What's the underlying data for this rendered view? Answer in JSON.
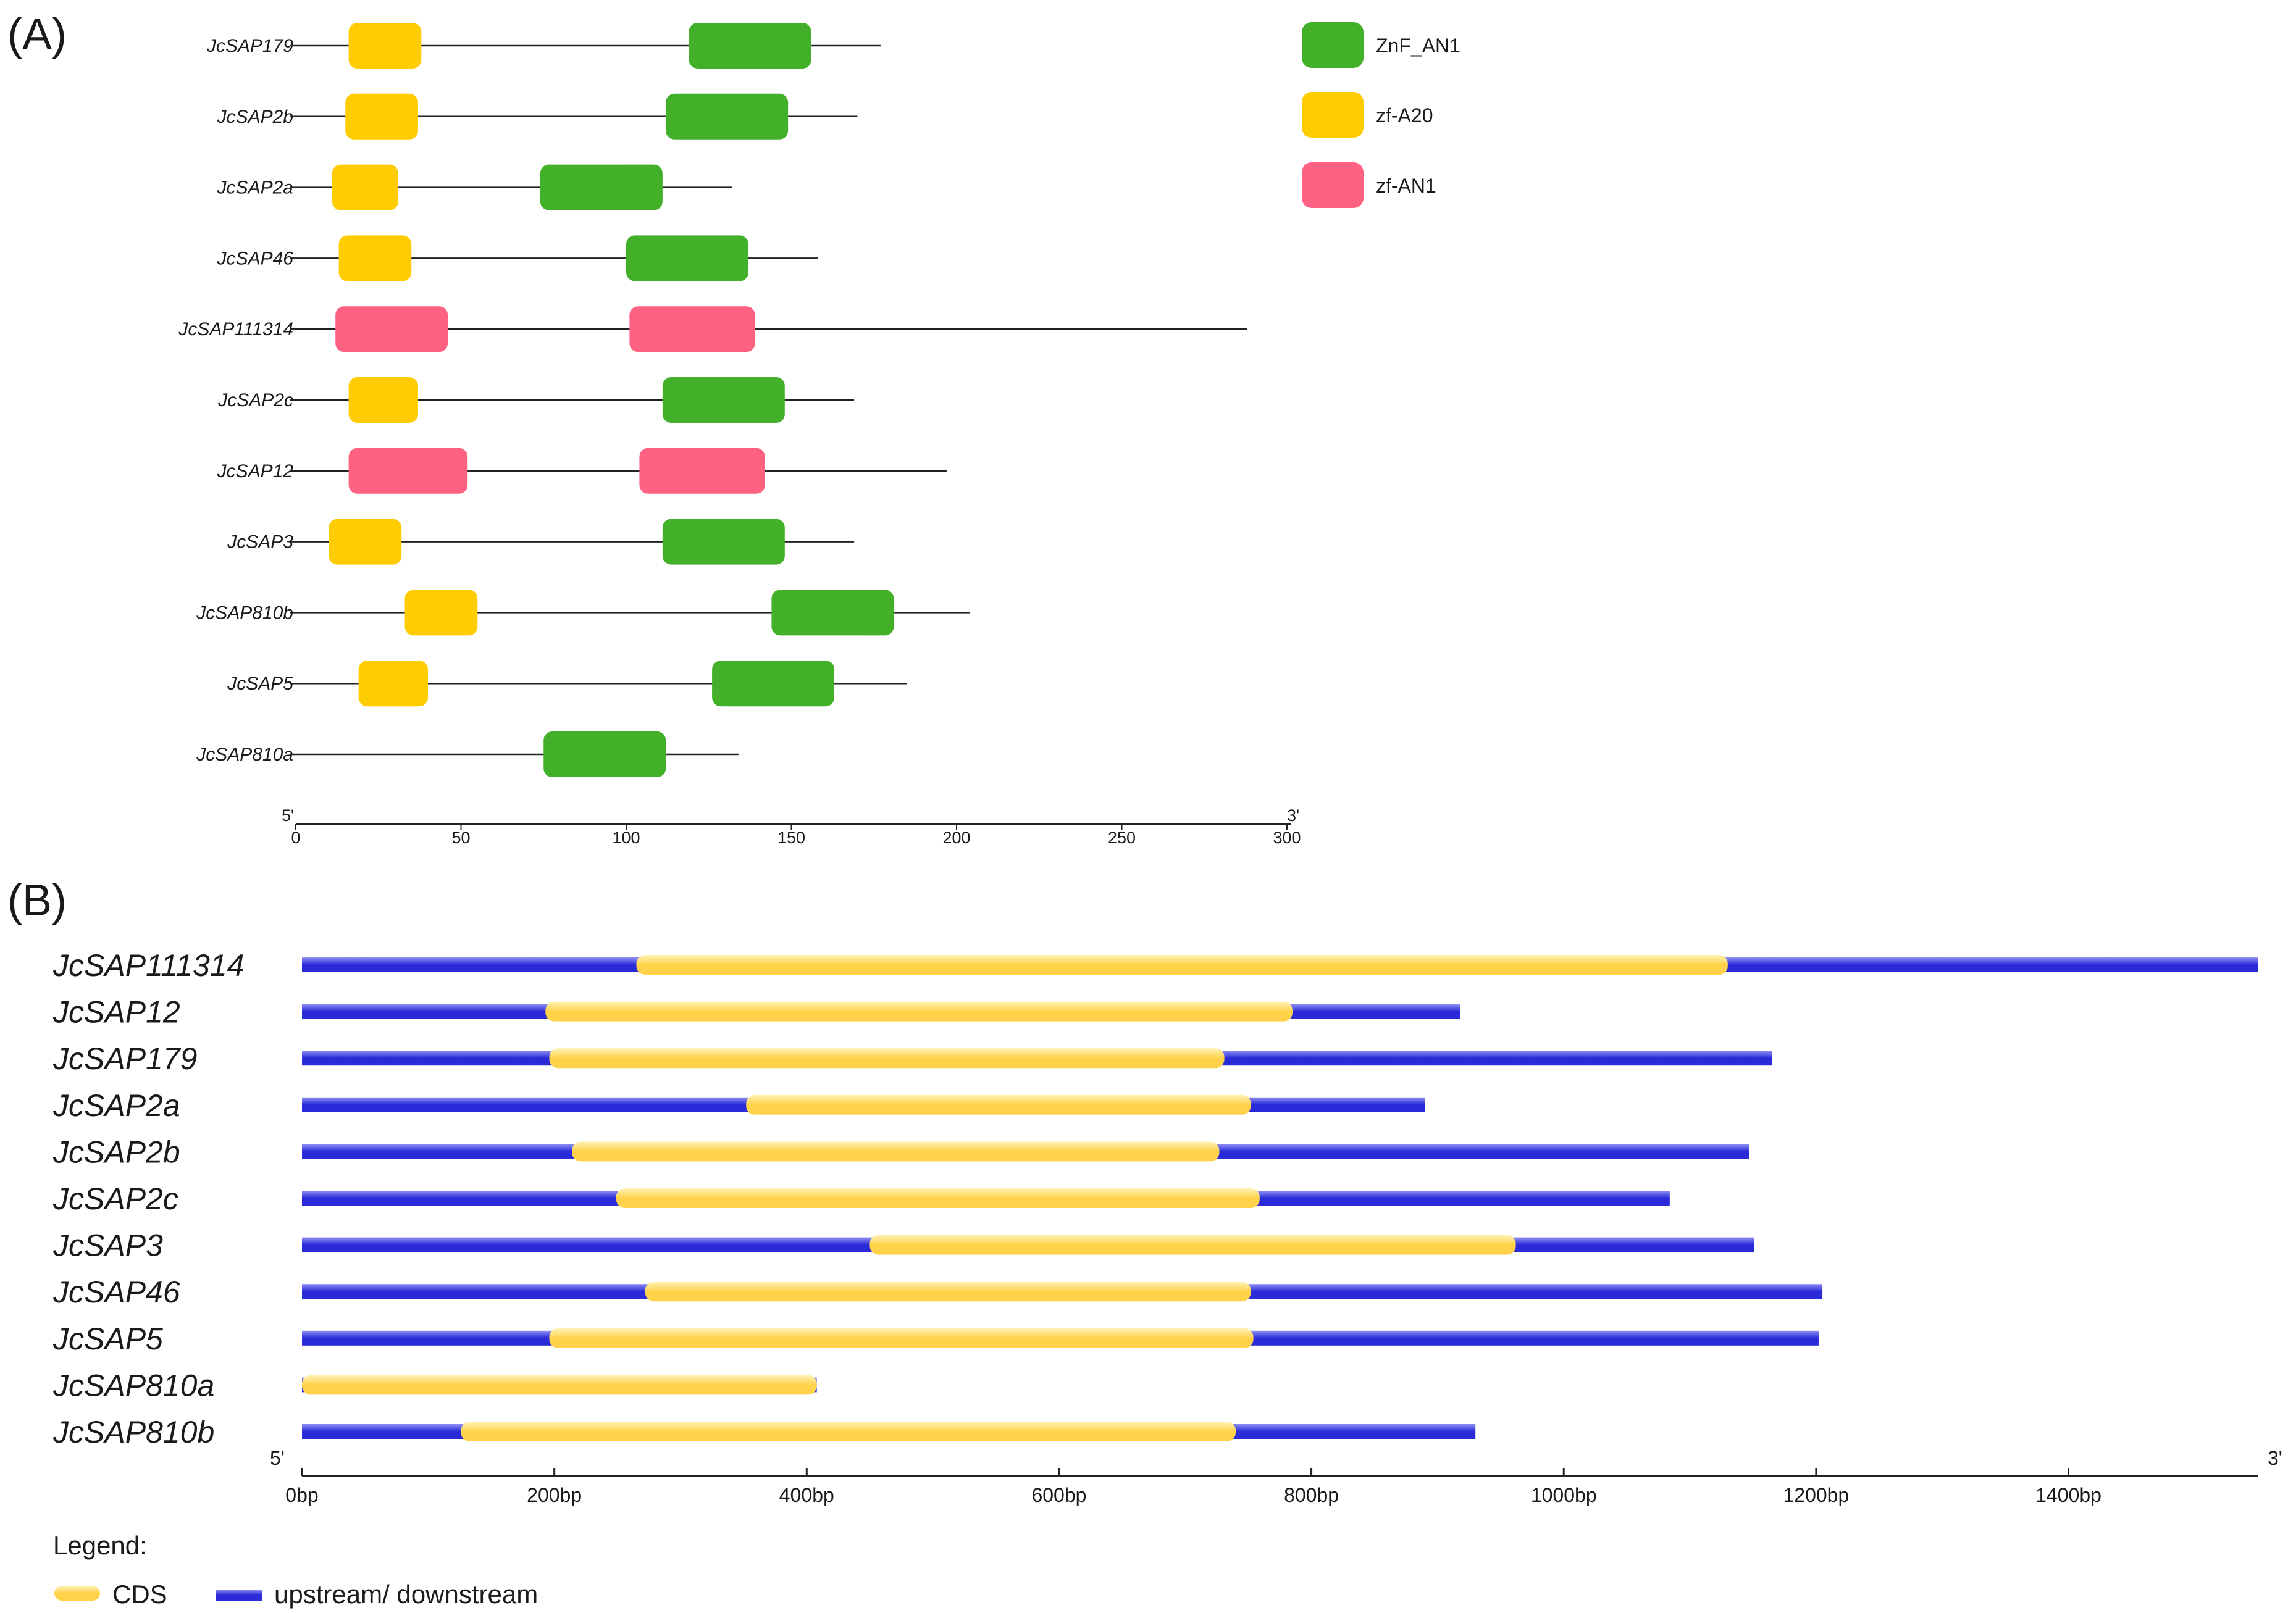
{
  "chart_data": [
    {
      "type": "protein-domain-diagram",
      "panel_label": "(A)",
      "axis": {
        "min": 0,
        "max": 300,
        "ticks": [
          0,
          50,
          100,
          150,
          200,
          250,
          300
        ],
        "start_label": "5'",
        "end_label": "3'"
      },
      "domain_types": [
        {
          "key": "ZnF_AN1",
          "label": "ZnF_AN1",
          "color": "#43b02a"
        },
        {
          "key": "zf-A20",
          "label": "zf-A20",
          "color": "#ffcc00"
        },
        {
          "key": "zf-AN1",
          "label": "zf-AN1",
          "color": "#ff6183"
        }
      ],
      "proteins": [
        {
          "name": "JcSAP179",
          "length": 177,
          "domains": [
            {
              "type": "zf-A20",
              "start": 16,
              "end": 38
            },
            {
              "type": "ZnF_AN1",
              "start": 119,
              "end": 156
            }
          ]
        },
        {
          "name": "JcSAP2b",
          "length": 170,
          "domains": [
            {
              "type": "zf-A20",
              "start": 15,
              "end": 37
            },
            {
              "type": "ZnF_AN1",
              "start": 112,
              "end": 149
            }
          ]
        },
        {
          "name": "JcSAP2a",
          "length": 132,
          "domains": [
            {
              "type": "zf-A20",
              "start": 11,
              "end": 31
            },
            {
              "type": "ZnF_AN1",
              "start": 74,
              "end": 111
            }
          ]
        },
        {
          "name": "JcSAP46",
          "length": 158,
          "domains": [
            {
              "type": "zf-A20",
              "start": 13,
              "end": 35
            },
            {
              "type": "ZnF_AN1",
              "start": 100,
              "end": 137
            }
          ]
        },
        {
          "name": "JcSAP111314",
          "length": 288,
          "domains": [
            {
              "type": "zf-AN1",
              "start": 12,
              "end": 46
            },
            {
              "type": "zf-AN1",
              "start": 101,
              "end": 139
            }
          ]
        },
        {
          "name": "JcSAP2c",
          "length": 169,
          "domains": [
            {
              "type": "zf-A20",
              "start": 16,
              "end": 37
            },
            {
              "type": "ZnF_AN1",
              "start": 111,
              "end": 148
            }
          ]
        },
        {
          "name": "JcSAP12",
          "length": 197,
          "domains": [
            {
              "type": "zf-AN1",
              "start": 16,
              "end": 52
            },
            {
              "type": "zf-AN1",
              "start": 104,
              "end": 142
            }
          ]
        },
        {
          "name": "JcSAP3",
          "length": 169,
          "domains": [
            {
              "type": "zf-A20",
              "start": 10,
              "end": 32
            },
            {
              "type": "ZnF_AN1",
              "start": 111,
              "end": 148
            }
          ]
        },
        {
          "name": "JcSAP810b",
          "length": 204,
          "domains": [
            {
              "type": "zf-A20",
              "start": 33,
              "end": 55
            },
            {
              "type": "ZnF_AN1",
              "start": 144,
              "end": 181
            }
          ]
        },
        {
          "name": "JcSAP5",
          "length": 185,
          "domains": [
            {
              "type": "zf-A20",
              "start": 19,
              "end": 40
            },
            {
              "type": "ZnF_AN1",
              "start": 126,
              "end": 163
            }
          ]
        },
        {
          "name": "JcSAP810a",
          "length": 134,
          "domains": [
            {
              "type": "ZnF_AN1",
              "start": 75,
              "end": 112
            }
          ]
        }
      ]
    },
    {
      "type": "gene-structure-diagram",
      "panel_label": "(B)",
      "axis": {
        "min": 0,
        "max": 1550,
        "ticks": [
          {
            "value": 0,
            "label": "0bp"
          },
          {
            "value": 200,
            "label": "200bp"
          },
          {
            "value": 400,
            "label": "400bp"
          },
          {
            "value": 600,
            "label": "600bp"
          },
          {
            "value": 800,
            "label": "800bp"
          },
          {
            "value": 1000,
            "label": "1000bp"
          },
          {
            "value": 1200,
            "label": "1200bp"
          },
          {
            "value": 1400,
            "label": "1400bp"
          }
        ],
        "start_label": "5'",
        "end_label": "3'"
      },
      "feature_colors": {
        "cds": "#ffd24a",
        "cds_light": "#fff3b8",
        "utr": "#2a2ad8",
        "utr_light": "#8f8ff5"
      },
      "legend_title": "Legend:",
      "legend": [
        {
          "key": "cds",
          "label": "CDS"
        },
        {
          "key": "utr",
          "label": "upstream/ downstream"
        }
      ],
      "genes": [
        {
          "name": "JcSAP111314",
          "length": 1550,
          "cds": [
            265,
            1130
          ]
        },
        {
          "name": "JcSAP12",
          "length": 918,
          "cds": [
            193,
            785
          ]
        },
        {
          "name": "JcSAP179",
          "length": 1165,
          "cds": [
            196,
            731
          ]
        },
        {
          "name": "JcSAP2a",
          "length": 890,
          "cds": [
            352,
            752
          ]
        },
        {
          "name": "JcSAP2b",
          "length": 1147,
          "cds": [
            214,
            727
          ]
        },
        {
          "name": "JcSAP2c",
          "length": 1084,
          "cds": [
            249,
            759
          ]
        },
        {
          "name": "JcSAP3",
          "length": 1151,
          "cds": [
            450,
            962
          ]
        },
        {
          "name": "JcSAP46",
          "length": 1205,
          "cds": [
            272,
            752
          ]
        },
        {
          "name": "JcSAP5",
          "length": 1202,
          "cds": [
            196,
            754
          ]
        },
        {
          "name": "JcSAP810a",
          "length": 408,
          "cds": [
            0,
            408
          ]
        },
        {
          "name": "JcSAP810b",
          "length": 930,
          "cds": [
            126,
            740
          ]
        }
      ]
    }
  ]
}
